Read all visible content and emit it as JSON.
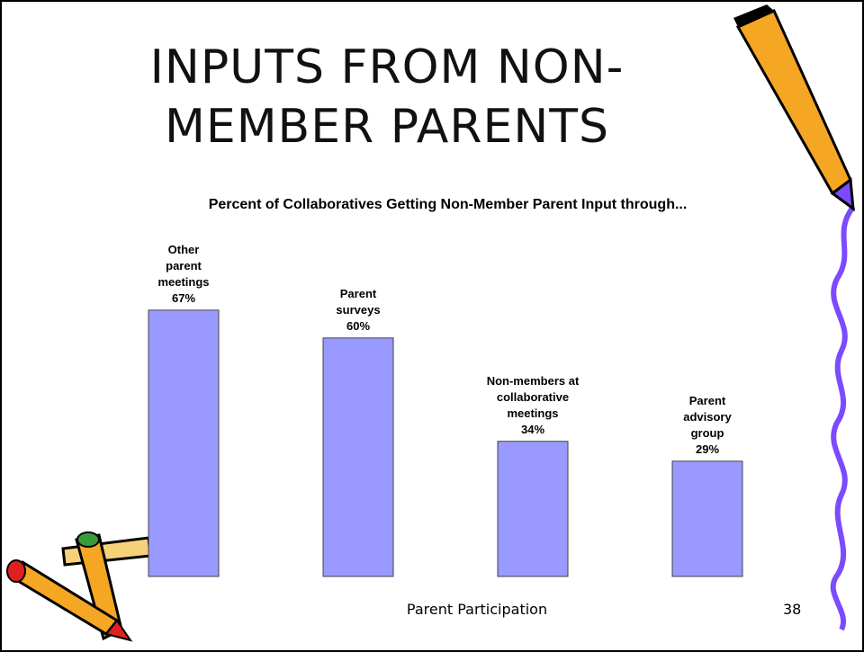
{
  "slide_title": "INPUTS FROM NON-MEMBER PARENTS",
  "chart_data": {
    "type": "bar",
    "title": "Percent of Collaboratives Getting Non-Member Parent Input through...",
    "categories": [
      "Other parent meetings",
      "Parent surveys",
      "Non-members at collaborative meetings",
      "Parent advisory group"
    ],
    "values": [
      67,
      60,
      34,
      29
    ],
    "value_labels": [
      "67%",
      "60%",
      "34%",
      "29%"
    ],
    "color": "#9999ff",
    "ylim": [
      0,
      100
    ]
  },
  "footer": "Parent Participation",
  "page_number": "38"
}
